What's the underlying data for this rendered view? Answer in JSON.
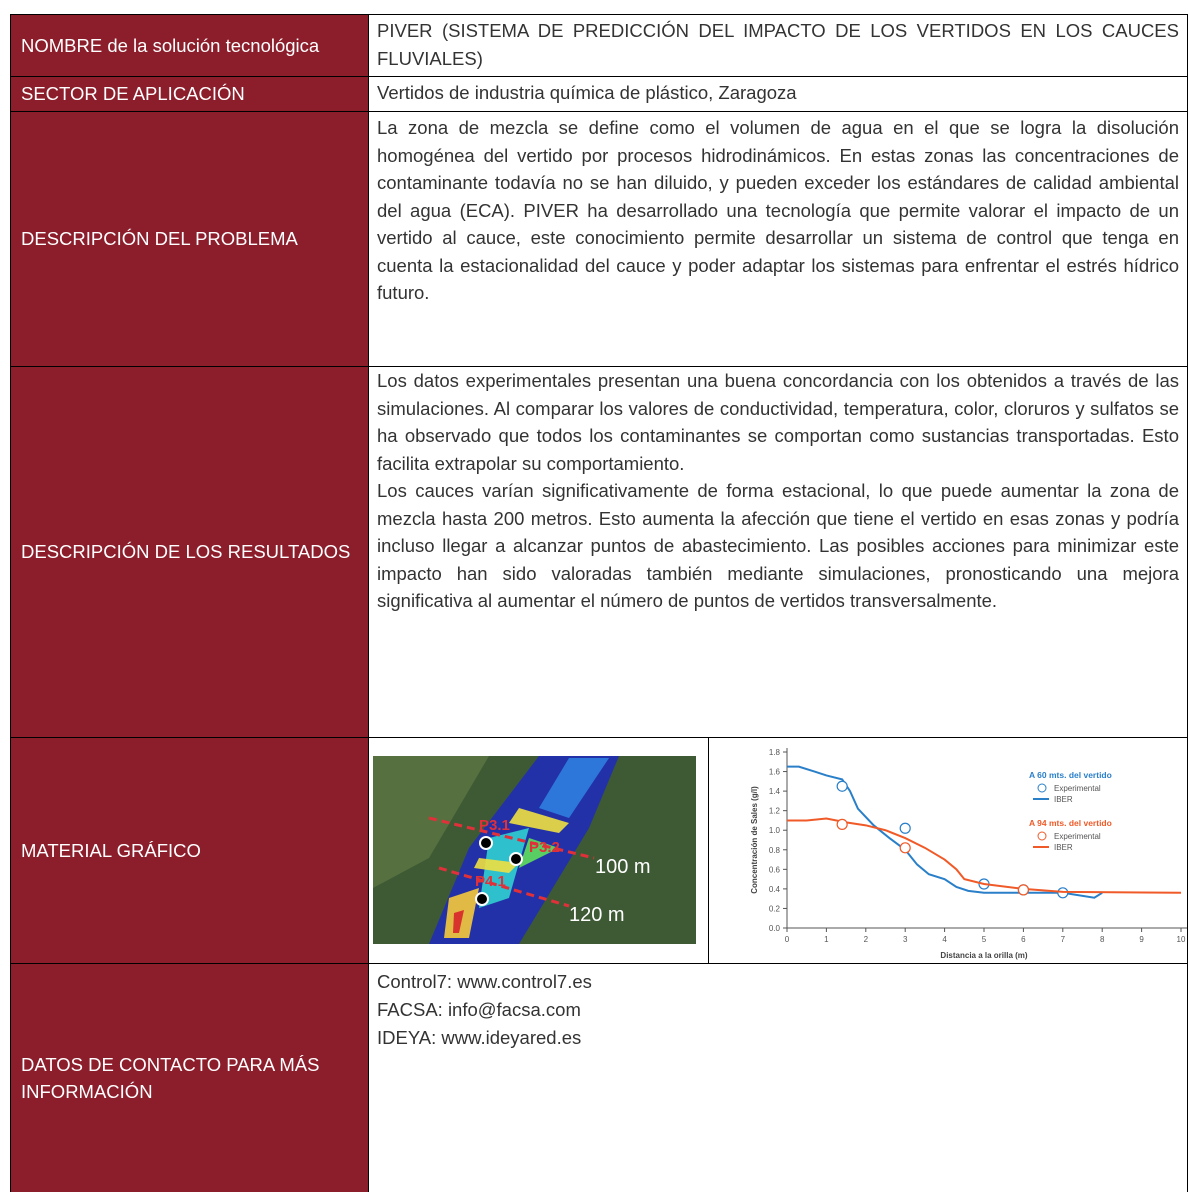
{
  "rows": [
    {
      "label": "NOMBRE de la solución tecnológica",
      "text": "PIVER (SISTEMA DE PREDICCIÓN DEL IMPACTO DE LOS VERTIDOS EN LOS CAUCES FLUVIALES)"
    },
    {
      "label": "SECTOR DE APLICACIÓN",
      "text": "Vertidos de industria química de plástico, Zaragoza"
    },
    {
      "label": "DESCRIPCIÓN DEL PROBLEMA",
      "text": "La zona de mezcla se define como el volumen de agua en el que se logra la disolución homogénea del vertido por procesos hidrodinámicos. En estas zonas las concentraciones de contaminante todavía no se han diluido, y pueden exceder los estándares de calidad ambiental del agua (ECA). PIVER ha desarrollado una tecnología que permite valorar el impacto de un vertido al cauce, este conocimiento permite desarrollar un sistema de control que tenga en cuenta la estacionalidad del cauce y poder adaptar los sistemas para enfrentar el estrés hídrico futuro."
    },
    {
      "label": "DESCRIPCIÓN DE LOS RESULTADOS",
      "paragraphs": [
        "Los datos experimentales presentan una buena concordancia con los obtenidos a través de las simulaciones. Al comparar los valores de conductividad, temperatura, color, cloruros y sulfatos se ha observado que todos los contaminantes se comportan como sustancias transportadas. Esto facilita extrapolar su comportamiento.",
        "Los cauces varían significativamente de forma estacional, lo que puede aumentar la zona de mezcla hasta 200 metros. Esto aumenta la afección que tiene el vertido en esas zonas y podría incluso llegar a alcanzar puntos de abastecimiento. Las posibles acciones para minimizar este impacto han sido valoradas también mediante simulaciones, pronosticando una mejora significativa al aumentar el número de puntos de vertidos transversalmente."
      ]
    },
    {
      "label": "MATERIAL GRÁFICO",
      "map": {
        "points": [
          "P3.1",
          "P3.2",
          "P4.1"
        ],
        "distances": [
          "100 m",
          "120 m"
        ]
      },
      "chart": {
        "type": "line",
        "xlabel": "Distancia a la orilla (m)",
        "ylabel": "Concentración de Sales (g/l)",
        "xlim": [
          0,
          10
        ],
        "xticks": [
          0,
          1,
          2,
          3,
          4,
          5,
          6,
          7,
          8,
          9,
          10
        ],
        "ylim": [
          0,
          1.8
        ],
        "yticks": [
          {
            "value": 0,
            "label": "0.0"
          },
          0.2,
          0.4,
          0.6,
          0.8,
          {
            "value": 1,
            "label": "1.0"
          },
          1.2,
          1.4,
          1.6,
          1.8
        ],
        "groups": [
          {
            "name": "A 60 mts. del vertido",
            "color": "#2a7fc9",
            "experimental": {
              "name": "Experimental",
              "x": [
                1.4,
                3.0,
                5.0,
                6.0,
                7.0
              ],
              "values": [
                1.45,
                1.02,
                0.45,
                0.39,
                0.36
              ]
            },
            "model": {
              "name": "IBER",
              "x": [
                0,
                0.3,
                0.7,
                1.0,
                1.4,
                1.6,
                1.8,
                2.2,
                2.6,
                3.0,
                3.3,
                3.6,
                4.0,
                4.3,
                4.6,
                5.0,
                6.0,
                7.0,
                7.8,
                8.0
              ],
              "values": [
                1.65,
                1.65,
                1.6,
                1.56,
                1.52,
                1.4,
                1.22,
                1.05,
                0.92,
                0.8,
                0.65,
                0.55,
                0.5,
                0.42,
                0.38,
                0.36,
                0.36,
                0.36,
                0.31,
                0.36
              ]
            }
          },
          {
            "name": "A 94 mts. del vertido",
            "color": "#f05a28",
            "experimental": {
              "name": "Experimental",
              "x": [
                1.4,
                3.0,
                6.0
              ],
              "values": [
                1.06,
                0.82,
                0.39
              ]
            },
            "model": {
              "name": "IBER",
              "x": [
                0,
                0.5,
                1.0,
                1.5,
                2.0,
                2.5,
                3.0,
                3.5,
                4.0,
                4.3,
                4.5,
                5.0,
                6.0,
                7.0,
                10.0
              ],
              "values": [
                1.1,
                1.1,
                1.12,
                1.08,
                1.05,
                1.0,
                0.92,
                0.82,
                0.7,
                0.6,
                0.5,
                0.45,
                0.4,
                0.37,
                0.36
              ]
            }
          }
        ]
      }
    },
    {
      "label": "DATOS DE CONTACTO PARA MÁS INFORMACIÓN",
      "lines": [
        "Control7: www.control7.es",
        "FACSA: info@facsa.com",
        "IDEYA: www.ideyared.es"
      ]
    }
  ]
}
